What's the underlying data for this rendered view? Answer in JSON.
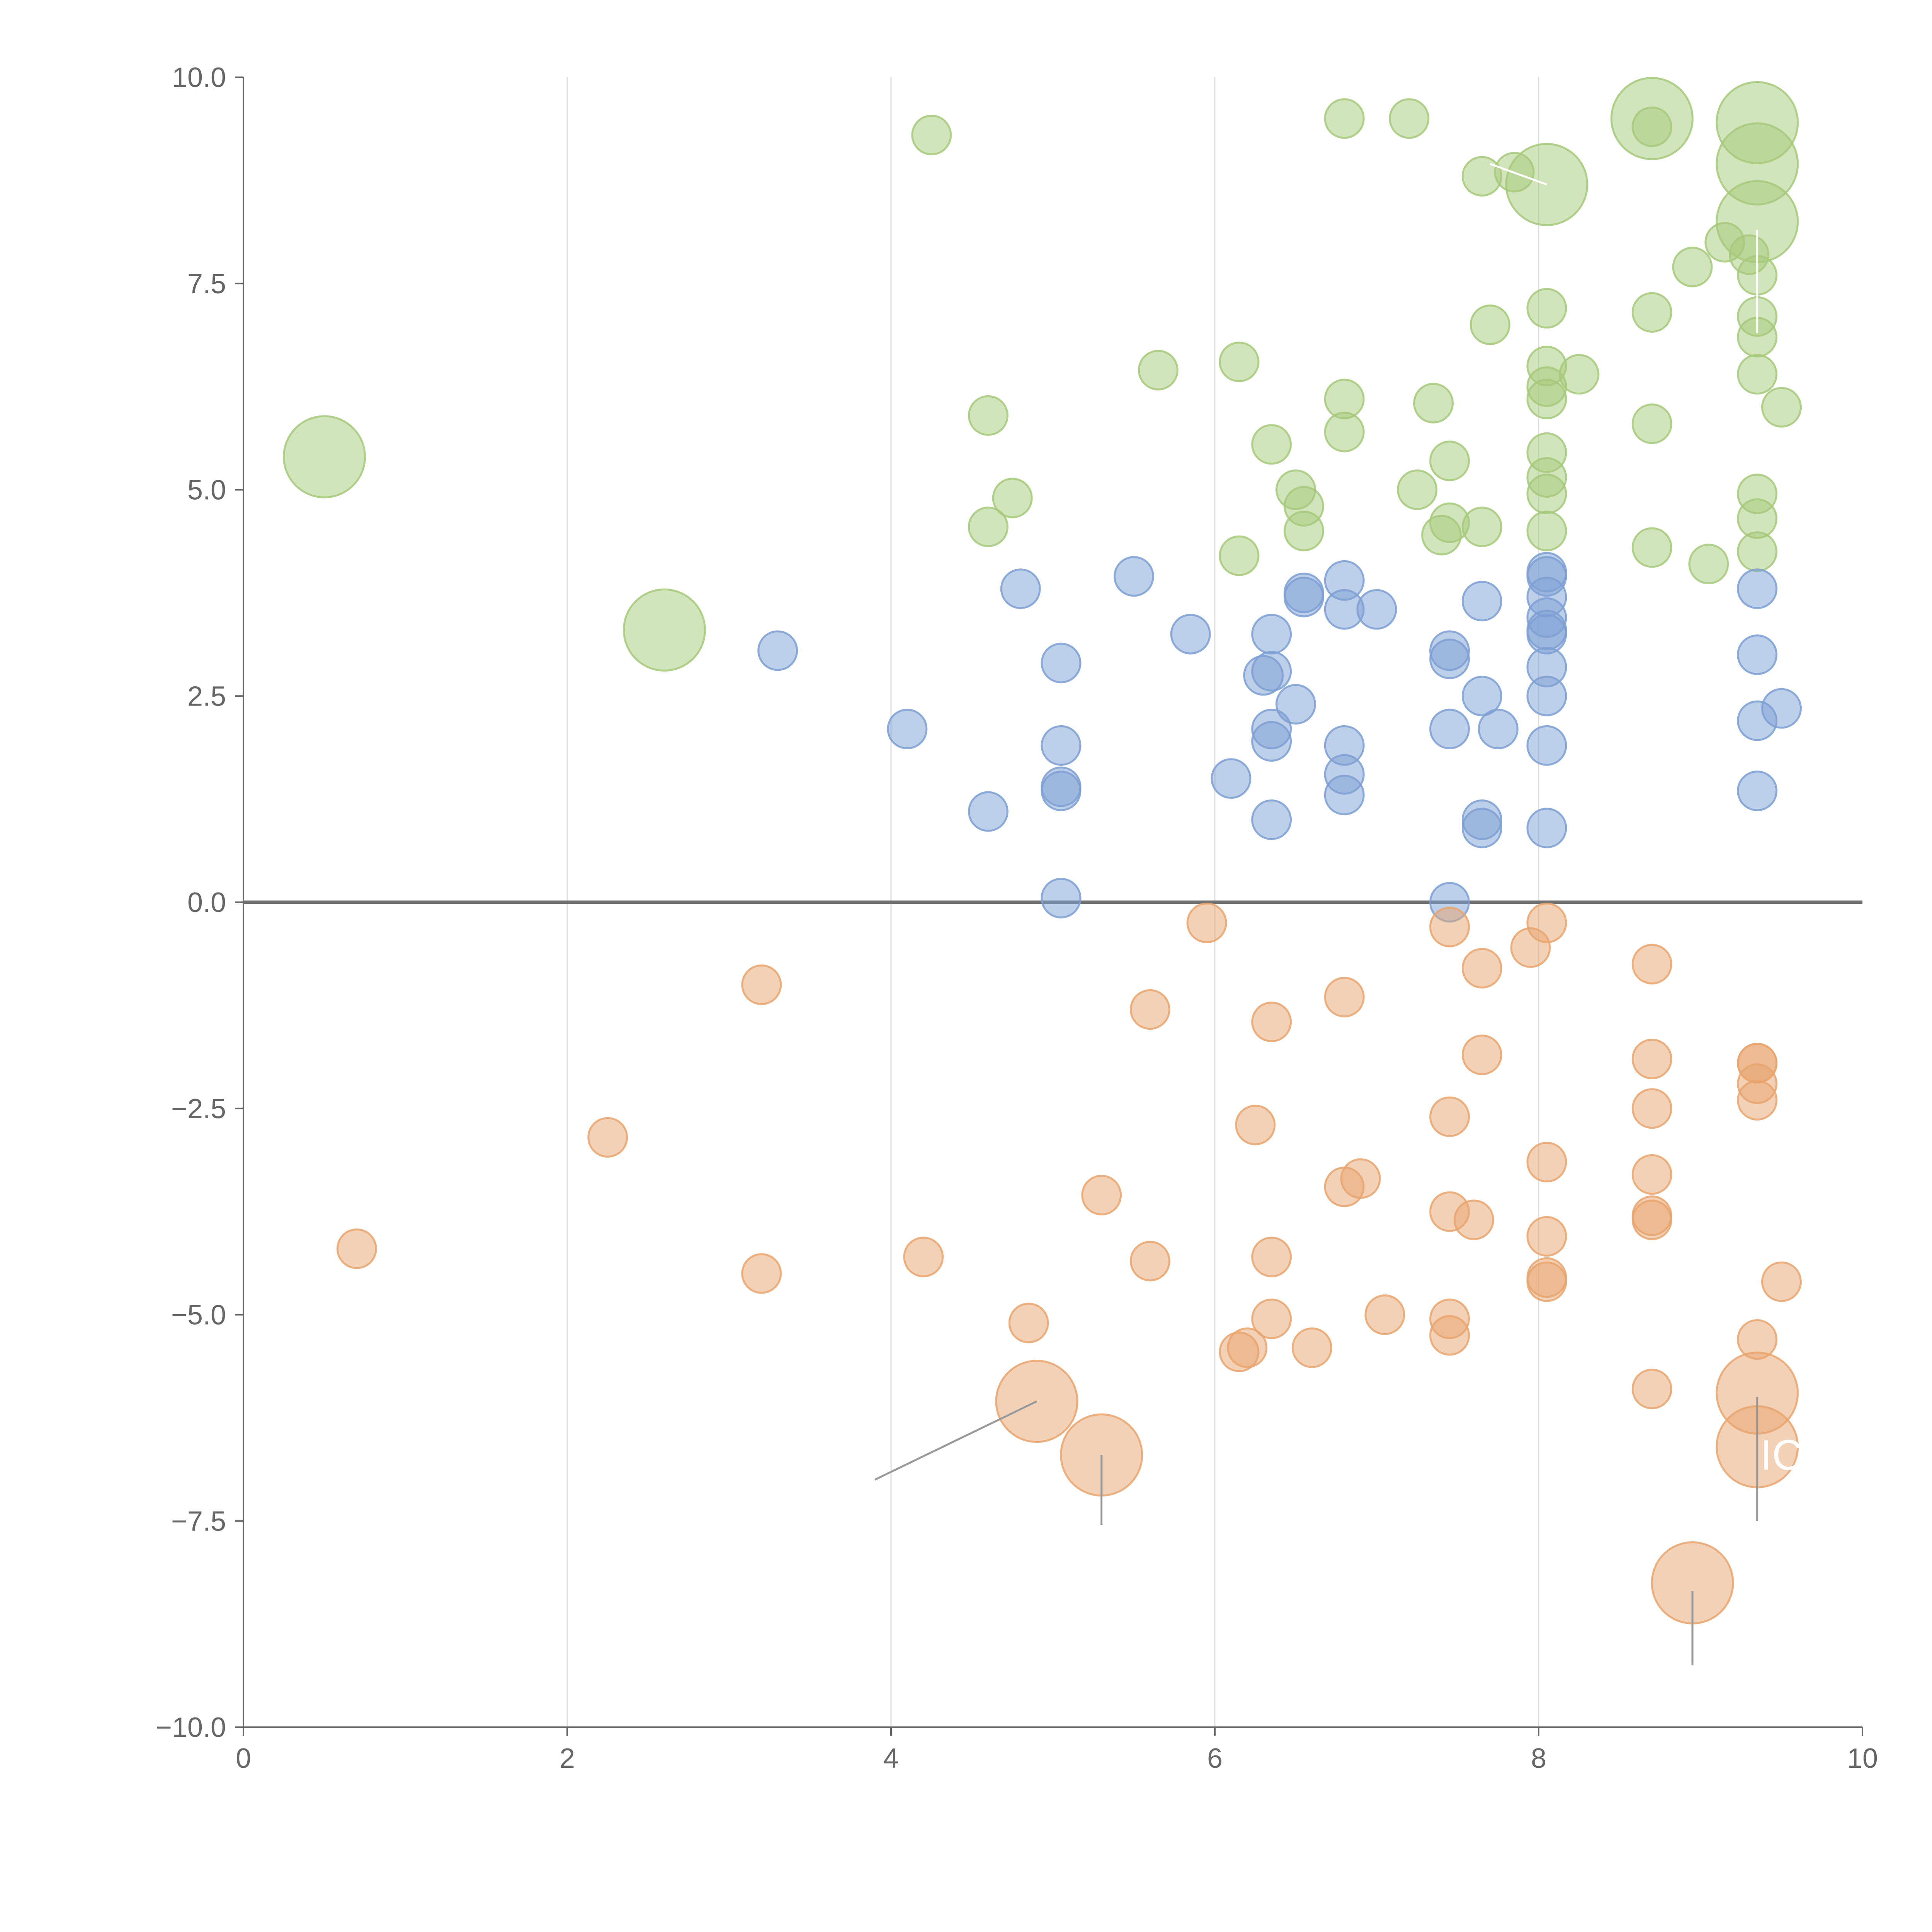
{
  "chart_data": {
    "type": "scatter",
    "title": "",
    "xlabel": "",
    "ylabel": "",
    "xlim": [
      0,
      10
    ],
    "ylim": [
      -10,
      10
    ],
    "grid": "vertical",
    "zero_line": true,
    "x_ticks": [
      "0",
      "2",
      "4",
      "6",
      "8",
      "10"
    ],
    "y_ticks": [
      "10.0",
      "7.5",
      "5.0",
      "2.5",
      "0.0",
      "−2.5",
      "−5.0",
      "−7.5",
      "−10.0"
    ],
    "colors": {
      "green": "#a6c97a",
      "blue": "#7d9fd3",
      "orange": "#e8a46e",
      "axis": "#666666",
      "grid": "#dddddd",
      "zero_line": "#707070"
    },
    "series": [
      {
        "name": "green",
        "points": [
          [
            0.5,
            5.4,
            2
          ],
          [
            2.6,
            3.3,
            2
          ],
          [
            4.25,
            9.3,
            1
          ],
          [
            4.6,
            5.9,
            1
          ],
          [
            4.6,
            4.55,
            1
          ],
          [
            4.75,
            4.9,
            1
          ],
          [
            5.65,
            6.45,
            1
          ],
          [
            6.15,
            6.55,
            1
          ],
          [
            6.15,
            4.2,
            1
          ],
          [
            6.35,
            5.55,
            1
          ],
          [
            6.5,
            5.0,
            1
          ],
          [
            6.55,
            4.8,
            1
          ],
          [
            6.55,
            4.5,
            1
          ],
          [
            6.8,
            9.5,
            1
          ],
          [
            6.8,
            6.1,
            1
          ],
          [
            6.8,
            5.7,
            1
          ],
          [
            7.2,
            9.5,
            1
          ],
          [
            7.25,
            5.0,
            1
          ],
          [
            7.35,
            6.05,
            1
          ],
          [
            7.4,
            4.45,
            1
          ],
          [
            7.45,
            4.6,
            1
          ],
          [
            7.45,
            5.35,
            1
          ],
          [
            7.65,
            8.8,
            1
          ],
          [
            7.65,
            4.55,
            1
          ],
          [
            7.7,
            7.0,
            1
          ],
          [
            7.85,
            8.85,
            1
          ],
          [
            8.05,
            8.7,
            2
          ],
          [
            8.05,
            7.2,
            1
          ],
          [
            8.05,
            6.5,
            1
          ],
          [
            8.05,
            6.25,
            1
          ],
          [
            8.05,
            6.1,
            1
          ],
          [
            8.05,
            5.45,
            1
          ],
          [
            8.05,
            5.15,
            1
          ],
          [
            8.05,
            4.95,
            1
          ],
          [
            8.05,
            4.5,
            1
          ],
          [
            8.25,
            6.4,
            1
          ],
          [
            8.7,
            9.5,
            2
          ],
          [
            8.7,
            9.4,
            1
          ],
          [
            8.7,
            7.15,
            1
          ],
          [
            8.7,
            5.8,
            1
          ],
          [
            8.7,
            4.3,
            1
          ],
          [
            8.95,
            7.7,
            1
          ],
          [
            9.05,
            4.1,
            1
          ],
          [
            9.15,
            8.0,
            1
          ],
          [
            9.3,
            7.85,
            1
          ],
          [
            9.35,
            9.45,
            2
          ],
          [
            9.35,
            8.95,
            2
          ],
          [
            9.35,
            8.25,
            2
          ],
          [
            9.35,
            7.6,
            1
          ],
          [
            9.35,
            7.1,
            1
          ],
          [
            9.35,
            6.85,
            1
          ],
          [
            9.35,
            6.4,
            1
          ],
          [
            9.35,
            4.95,
            1
          ],
          [
            9.35,
            4.65,
            1
          ],
          [
            9.35,
            4.25,
            1
          ],
          [
            9.5,
            6.0,
            1
          ]
        ]
      },
      {
        "name": "blue",
        "points": [
          [
            3.3,
            3.05,
            1
          ],
          [
            4.1,
            2.1,
            1
          ],
          [
            4.6,
            1.1,
            1
          ],
          [
            4.8,
            3.8,
            1
          ],
          [
            5.05,
            2.9,
            1
          ],
          [
            5.05,
            1.9,
            1
          ],
          [
            5.05,
            1.4,
            1
          ],
          [
            5.05,
            1.35,
            1
          ],
          [
            5.05,
            0.05,
            1
          ],
          [
            5.5,
            3.95,
            1
          ],
          [
            5.85,
            3.25,
            1
          ],
          [
            6.1,
            1.5,
            1
          ],
          [
            6.3,
            2.75,
            1
          ],
          [
            6.35,
            3.25,
            1
          ],
          [
            6.35,
            2.8,
            1
          ],
          [
            6.35,
            2.1,
            1
          ],
          [
            6.35,
            1.95,
            1
          ],
          [
            6.35,
            1.0,
            1
          ],
          [
            6.5,
            2.4,
            1
          ],
          [
            6.55,
            3.75,
            1
          ],
          [
            6.55,
            3.7,
            1
          ],
          [
            6.8,
            3.9,
            1
          ],
          [
            6.8,
            3.55,
            1
          ],
          [
            6.8,
            1.9,
            1
          ],
          [
            6.8,
            1.55,
            1
          ],
          [
            6.8,
            1.3,
            1
          ],
          [
            7.0,
            3.55,
            1
          ],
          [
            7.45,
            3.05,
            1
          ],
          [
            7.45,
            2.95,
            1
          ],
          [
            7.45,
            2.1,
            1
          ],
          [
            7.45,
            0.0,
            1
          ],
          [
            7.65,
            3.65,
            1
          ],
          [
            7.65,
            2.5,
            1
          ],
          [
            7.65,
            1.0,
            1
          ],
          [
            7.65,
            0.9,
            1
          ],
          [
            7.75,
            2.1,
            1
          ],
          [
            8.05,
            4.0,
            1
          ],
          [
            8.05,
            3.95,
            1
          ],
          [
            8.05,
            3.7,
            1
          ],
          [
            8.05,
            3.45,
            1
          ],
          [
            8.05,
            3.3,
            1
          ],
          [
            8.05,
            3.25,
            1
          ],
          [
            8.05,
            2.85,
            1
          ],
          [
            8.05,
            2.5,
            1
          ],
          [
            8.05,
            1.9,
            1
          ],
          [
            8.05,
            0.9,
            1
          ],
          [
            9.35,
            3.8,
            1
          ],
          [
            9.35,
            3.0,
            1
          ],
          [
            9.35,
            2.2,
            1
          ],
          [
            9.35,
            1.35,
            1
          ],
          [
            9.5,
            2.35,
            1
          ]
        ]
      },
      {
        "name": "orange",
        "points": [
          [
            0.7,
            -4.2,
            1
          ],
          [
            2.25,
            -2.85,
            1
          ],
          [
            3.2,
            -1.0,
            1
          ],
          [
            3.2,
            -4.5,
            1
          ],
          [
            4.2,
            -4.3,
            1
          ],
          [
            4.85,
            -5.1,
            1
          ],
          [
            4.9,
            -6.05,
            2
          ],
          [
            5.3,
            -3.55,
            1
          ],
          [
            5.3,
            -6.7,
            2
          ],
          [
            5.6,
            -1.3,
            1
          ],
          [
            5.6,
            -4.35,
            1
          ],
          [
            5.95,
            -0.25,
            1
          ],
          [
            6.15,
            -5.45,
            1
          ],
          [
            6.2,
            -5.4,
            1
          ],
          [
            6.25,
            -2.7,
            1
          ],
          [
            6.35,
            -1.45,
            1
          ],
          [
            6.35,
            -4.3,
            1
          ],
          [
            6.35,
            -5.05,
            1
          ],
          [
            6.6,
            -5.4,
            1
          ],
          [
            6.8,
            -1.15,
            1
          ],
          [
            6.8,
            -3.45,
            1
          ],
          [
            6.9,
            -3.35,
            1
          ],
          [
            7.05,
            -5.0,
            1
          ],
          [
            7.45,
            -0.3,
            1
          ],
          [
            7.45,
            -2.6,
            1
          ],
          [
            7.45,
            -3.75,
            1
          ],
          [
            7.45,
            -5.05,
            1
          ],
          [
            7.45,
            -5.25,
            1
          ],
          [
            7.6,
            -3.85,
            1
          ],
          [
            7.65,
            -0.8,
            1
          ],
          [
            7.65,
            -1.85,
            1
          ],
          [
            7.95,
            -0.55,
            1
          ],
          [
            8.05,
            -0.25,
            1
          ],
          [
            8.05,
            -3.15,
            1
          ],
          [
            8.05,
            -4.05,
            1
          ],
          [
            8.05,
            -4.55,
            1
          ],
          [
            8.05,
            -4.6,
            1
          ],
          [
            8.7,
            -0.75,
            1
          ],
          [
            8.7,
            -1.9,
            1
          ],
          [
            8.7,
            -2.5,
            1
          ],
          [
            8.7,
            -3.3,
            1
          ],
          [
            8.7,
            -3.8,
            1
          ],
          [
            8.7,
            -3.85,
            1
          ],
          [
            8.7,
            -5.9,
            1
          ],
          [
            8.95,
            -8.25,
            2
          ],
          [
            9.35,
            -1.95,
            1
          ],
          [
            9.35,
            -1.95,
            1
          ],
          [
            9.35,
            -2.2,
            1
          ],
          [
            9.35,
            -2.4,
            1
          ],
          [
            9.35,
            -5.3,
            1
          ],
          [
            9.35,
            -5.95,
            2
          ],
          [
            9.35,
            -6.6,
            2
          ],
          [
            9.5,
            -4.6,
            1
          ]
        ]
      }
    ],
    "annotations": [
      {
        "text": "IC",
        "x": 9.5,
        "y": -6.7
      }
    ]
  }
}
